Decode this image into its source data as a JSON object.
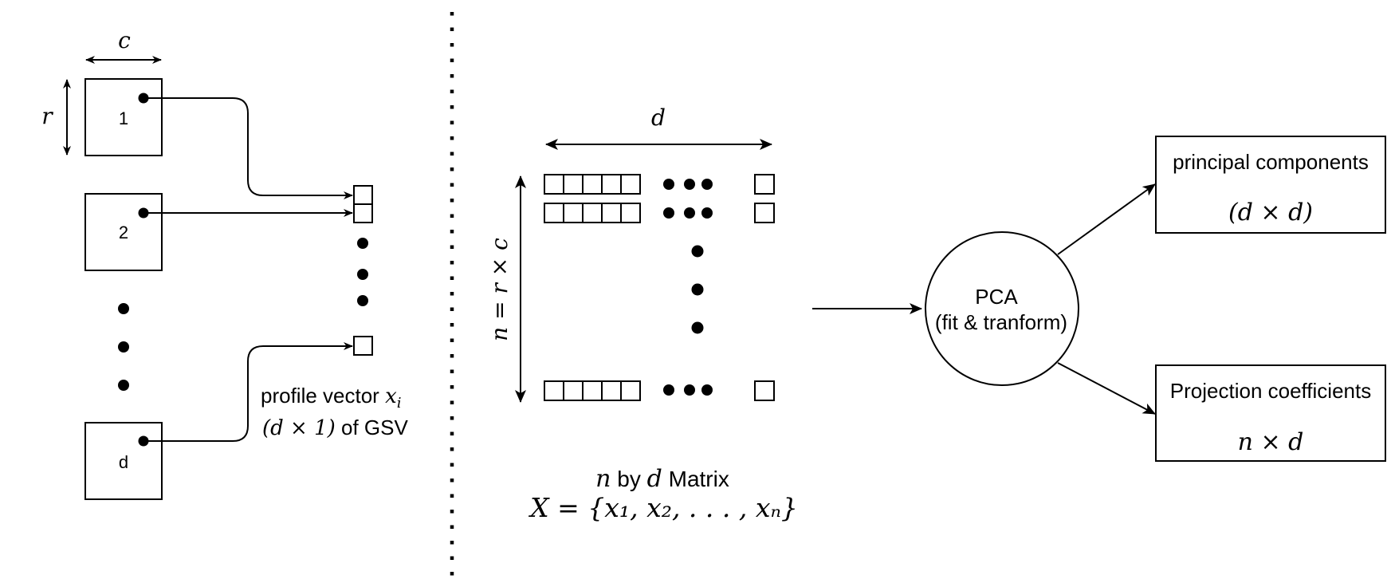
{
  "left_panel": {
    "dim_c": "c",
    "dim_r": "r",
    "image_labels": [
      "1",
      "2",
      "d"
    ],
    "caption_line1_text": "profile vector ",
    "caption_line1_math_base": "x",
    "caption_line1_math_sub": "i",
    "caption_line2_math": "(d × 1)",
    "caption_line2_text": " of GSV"
  },
  "matrix_panel": {
    "dim_d": "d",
    "dim_n": "n = r × c",
    "caption_line1_n": "n",
    "caption_line1_by": " by ",
    "caption_line1_d": "d",
    "caption_line1_matrix": " Matrix",
    "caption_line2": "X = {x₁, x₂, . . . , xₙ}"
  },
  "pca": {
    "line1": "PCA",
    "line2": "(fit & tranform)"
  },
  "outputs": {
    "principal_title": "principal components",
    "principal_dims": "(d × d)",
    "projection_title": "Projection coefficients",
    "projection_dims": "n × d"
  }
}
